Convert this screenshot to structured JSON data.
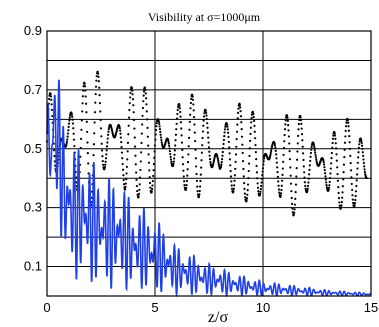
{
  "chart_data": {
    "type": "line",
    "title": "Visibility at σ=1000μm",
    "xlabel": "z/σ",
    "ylabel": "",
    "xlim": [
      0,
      15
    ],
    "ylim": [
      0,
      0.9
    ],
    "x_ticks": [
      0,
      5,
      10,
      15
    ],
    "x_tick_labels": [
      "0",
      "5",
      "10",
      "15"
    ],
    "y_ticks": [
      0.1,
      0.3,
      0.5,
      0.7,
      0.9
    ],
    "y_tick_labels": [
      "0.1",
      "0.3",
      "0.5",
      "0.7",
      "0.9"
    ],
    "grid": true,
    "legend": "none",
    "colors": {
      "dotted": "#000000",
      "solid": "#1f3fe8"
    },
    "series": [
      {
        "style": "dotted",
        "x": [
          0,
          0.4,
          0.8,
          1.2,
          1.6,
          2.0,
          2.4,
          2.8,
          3.2,
          3.6,
          4.0,
          4.4,
          4.8,
          5.2,
          5.6,
          6.0,
          6.4,
          6.8,
          7.2,
          7.6,
          8.0,
          8.4,
          8.8,
          9.2,
          9.6,
          10.0,
          10.4,
          10.8,
          11.2,
          11.6,
          12.0,
          12.4,
          12.8,
          13.2,
          13.6,
          14.0,
          14.4,
          14.8
        ],
        "y_max": [
          0.75,
          0.78,
          0.74,
          0.72,
          0.72,
          0.76,
          0.8,
          0.74,
          0.72,
          0.76,
          0.73,
          0.72,
          0.71,
          0.7,
          0.72,
          0.71,
          0.7,
          0.68,
          0.7,
          0.69,
          0.68,
          0.67,
          0.66,
          0.65,
          0.66,
          0.65,
          0.64,
          0.64,
          0.63,
          0.62,
          0.63,
          0.62,
          0.61,
          0.6,
          0.61,
          0.6,
          0.6,
          0.59
        ],
        "y_min": [
          0.3,
          0.25,
          0.32,
          0.35,
          0.28,
          0.3,
          0.36,
          0.33,
          0.36,
          0.26,
          0.35,
          0.32,
          0.3,
          0.34,
          0.33,
          0.31,
          0.35,
          0.3,
          0.33,
          0.31,
          0.25,
          0.34,
          0.3,
          0.32,
          0.28,
          0.22,
          0.32,
          0.27,
          0.3,
          0.25,
          0.31,
          0.28,
          0.3,
          0.22,
          0.29,
          0.3,
          0.27,
          0.29
        ]
      },
      {
        "style": "solid",
        "x": [
          0,
          0.2,
          0.3,
          0.5,
          0.8,
          1.2,
          1.6,
          2.0,
          2.4,
          3.0,
          3.5,
          4.0,
          4.5,
          5.0,
          5.5,
          6.0,
          6.5,
          7.0,
          7.5,
          8.0,
          8.5,
          9.0,
          9.5,
          10.0,
          11.0,
          12.0,
          13.0,
          14.0,
          15.0
        ],
        "y_max": [
          0.7,
          0.72,
          0.82,
          0.78,
          0.58,
          0.52,
          0.5,
          0.48,
          0.42,
          0.4,
          0.38,
          0.32,
          0.3,
          0.27,
          0.22,
          0.17,
          0.15,
          0.13,
          0.11,
          0.1,
          0.08,
          0.07,
          0.06,
          0.05,
          0.04,
          0.03,
          0.02,
          0.015,
          0.01
        ],
        "y_min": [
          0.4,
          0.22,
          0.35,
          0.3,
          0.1,
          0.05,
          0.06,
          0.03,
          0.05,
          0.02,
          0.03,
          0.01,
          0.02,
          0.01,
          0.01,
          0.005,
          0.005,
          0.003,
          0.003,
          0.002,
          0.002,
          0.002,
          0.001,
          0.001,
          0.001,
          0.001,
          0.001,
          0.001,
          0.001
        ]
      }
    ]
  }
}
